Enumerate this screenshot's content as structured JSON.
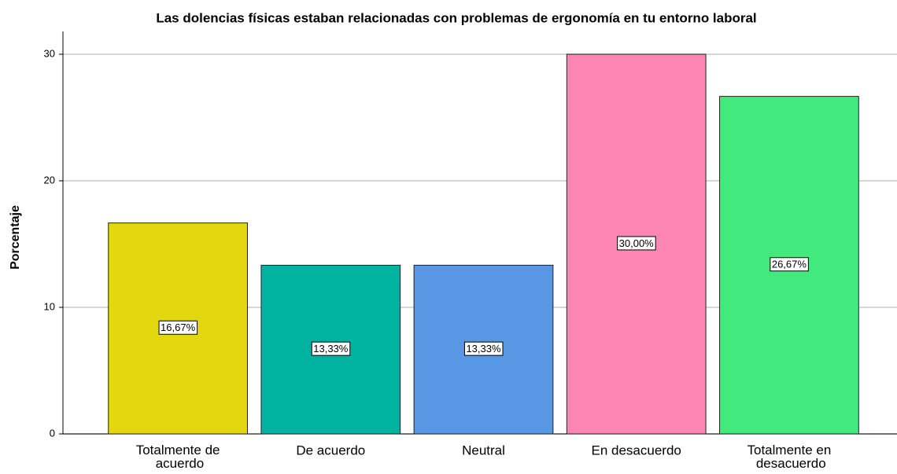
{
  "chart_data": {
    "type": "bar",
    "title": "Las dolencias físicas estaban relacionadas con problemas de ergonomía en tu entorno laboral",
    "y_label": "Porcentaje",
    "categories": [
      "Totalmente de acuerdo",
      "De acuerdo",
      "Neutral",
      "En desacuerdo",
      "Totalmente en desacuerdo"
    ],
    "values": [
      16.67,
      13.33,
      13.33,
      30,
      26.67
    ],
    "value_labels": [
      "16,67%",
      "13,33%",
      "13,33%",
      "30,00%",
      "26,67%"
    ],
    "colors": [
      "#e3d80f",
      "#00b3a0",
      "#5797e4",
      "#fd85b3",
      "#42e97c"
    ],
    "ylim": [
      0,
      30
    ],
    "yticks": [
      0,
      10,
      20,
      30
    ],
    "grid": true
  }
}
